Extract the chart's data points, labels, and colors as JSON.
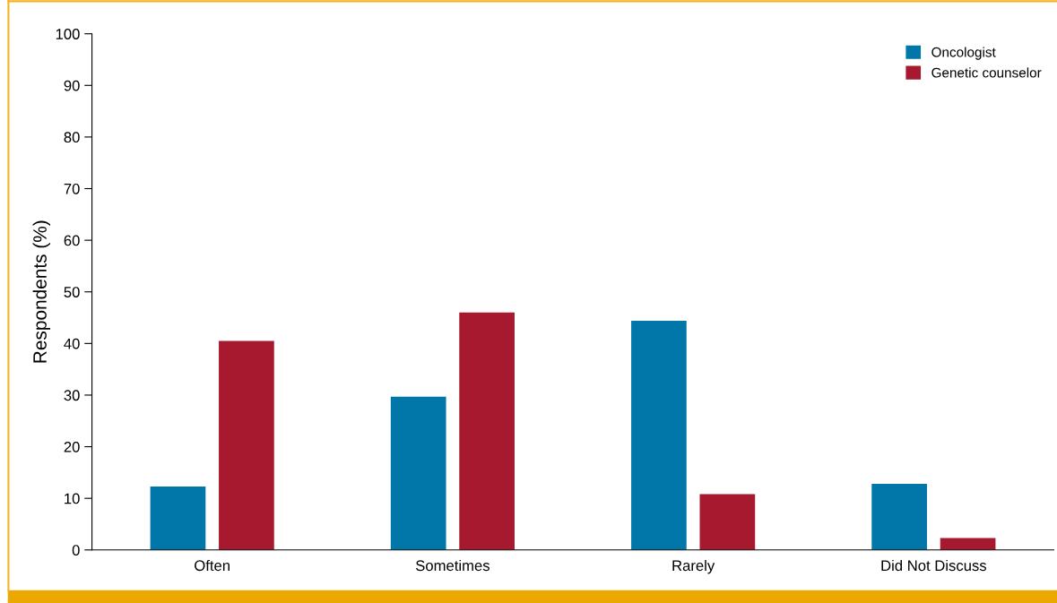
{
  "chart_data": {
    "type": "bar",
    "ylabel": "Respondents (%)",
    "categories": [
      "Often",
      "Sometimes",
      "Rarely",
      "Did Not Discuss"
    ],
    "series": [
      {
        "name": "Oncologist",
        "color": "#0077a8",
        "values": [
          12.3,
          29.7,
          44.4,
          12.8
        ]
      },
      {
        "name": "Genetic counselor",
        "color": "#a6192e",
        "values": [
          40.5,
          46.0,
          10.8,
          2.3
        ]
      }
    ],
    "ylim": [
      0,
      100
    ],
    "yticks": [
      0,
      10,
      20,
      30,
      40,
      50,
      60,
      70,
      80,
      90,
      100
    ],
    "grid": false,
    "legend": "top right"
  }
}
